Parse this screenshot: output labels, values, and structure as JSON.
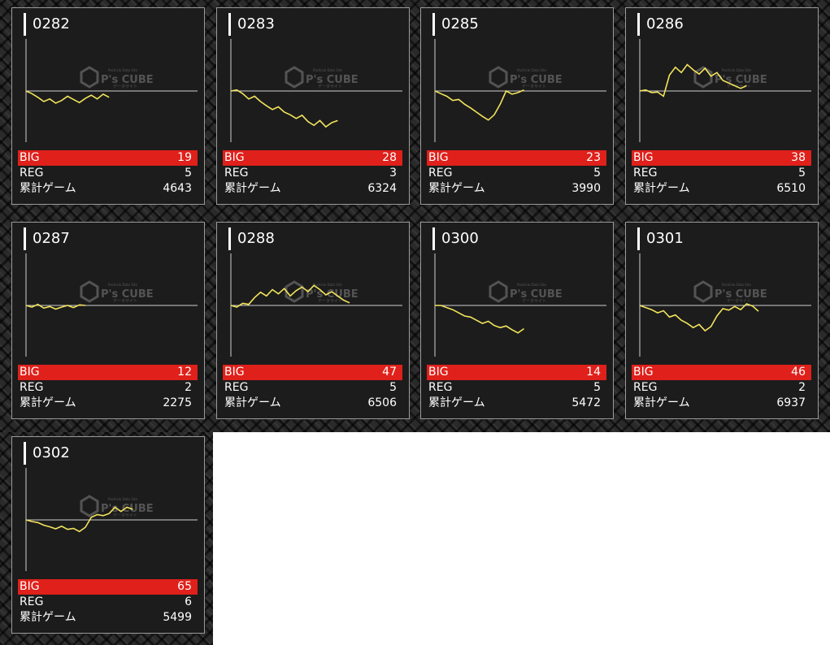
{
  "colors": {
    "big_bar": "#e0201a",
    "line": "#f2e45c",
    "axis": "#cfcfcf",
    "card_bg": "#1c1c1c"
  },
  "watermark": {
    "brand": "P's CUBE",
    "tagline_top": "Pachislo Data Site",
    "tagline_bottom": "データサイト",
    "icon": "cube-logo-icon"
  },
  "labels": {
    "big": "BIG",
    "reg": "REG",
    "total": "累計ゲーム"
  },
  "machines": [
    {
      "id": "0282",
      "big": "19",
      "reg": "5",
      "total": "4643",
      "trend": [
        0.0,
        -0.5,
        -1.2,
        -2.0,
        -1.5,
        -2.3,
        -1.8,
        -1.0,
        -1.6,
        -2.2,
        -1.4,
        -0.8,
        -1.5,
        -0.6,
        -1.2
      ]
    },
    {
      "id": "0283",
      "big": "28",
      "reg": "3",
      "total": "6324",
      "trend": [
        0.0,
        0.2,
        -0.5,
        -1.5,
        -1.0,
        -2.0,
        -2.8,
        -3.5,
        -3.0,
        -4.0,
        -4.5,
        -5.2,
        -4.6,
        -5.8,
        -6.5,
        -5.6,
        -6.8,
        -6.0,
        -5.6
      ]
    },
    {
      "id": "0285",
      "big": "23",
      "reg": "5",
      "total": "3990",
      "trend": [
        0.0,
        -0.5,
        -1.0,
        -1.8,
        -1.6,
        -2.5,
        -3.2,
        -4.0,
        -4.8,
        -5.5,
        -4.5,
        -2.5,
        0.0,
        -0.6,
        -0.3,
        0.2
      ]
    },
    {
      "id": "0286",
      "big": "38",
      "reg": "5",
      "total": "6510",
      "trend": [
        0.0,
        0.2,
        -0.3,
        -0.2,
        -1.0,
        3.0,
        4.5,
        3.5,
        5.0,
        4.0,
        3.2,
        4.3,
        2.8,
        3.5,
        2.0,
        1.5,
        1.0,
        0.5,
        1.0
      ]
    },
    {
      "id": "0287",
      "big": "12",
      "reg": "2",
      "total": "2275",
      "trend": [
        0.0,
        -0.3,
        0.2,
        -0.5,
        -0.2,
        -0.7,
        -0.3,
        0.0,
        -0.4,
        0.1,
        0.0
      ]
    },
    {
      "id": "0288",
      "big": "47",
      "reg": "5",
      "total": "6506",
      "trend": [
        0.0,
        -0.3,
        0.4,
        0.2,
        1.5,
        2.5,
        1.8,
        3.0,
        2.2,
        3.2,
        1.8,
        2.8,
        3.5,
        2.6,
        3.8,
        3.0,
        2.0,
        2.6,
        1.8,
        1.0,
        0.5
      ]
    },
    {
      "id": "0300",
      "big": "14",
      "reg": "5",
      "total": "5472",
      "trend": [
        0.0,
        0.0,
        -0.4,
        -0.8,
        -1.4,
        -2.0,
        -2.2,
        -2.8,
        -3.4,
        -3.0,
        -3.8,
        -4.2,
        -3.9,
        -4.6,
        -5.2,
        -4.4
      ]
    },
    {
      "id": "0301",
      "big": "46",
      "reg": "2",
      "total": "6937",
      "trend": [
        0.0,
        -0.4,
        -0.8,
        -1.4,
        -1.0,
        -2.2,
        -1.8,
        -2.8,
        -3.4,
        -4.2,
        -3.6,
        -4.8,
        -4.0,
        -2.0,
        -0.6,
        -0.9,
        -0.2,
        -0.8,
        0.3,
        -0.1,
        -1.1
      ]
    },
    {
      "id": "0302",
      "big": "65",
      "reg": "6",
      "total": "5499",
      "trend": [
        0.0,
        -0.3,
        -0.5,
        -1.0,
        -1.3,
        -1.7,
        -1.2,
        -1.8,
        -1.6,
        -2.2,
        -1.4,
        0.5,
        1.0,
        0.8,
        1.2,
        2.4,
        1.6,
        2.4,
        2.0
      ]
    }
  ]
}
